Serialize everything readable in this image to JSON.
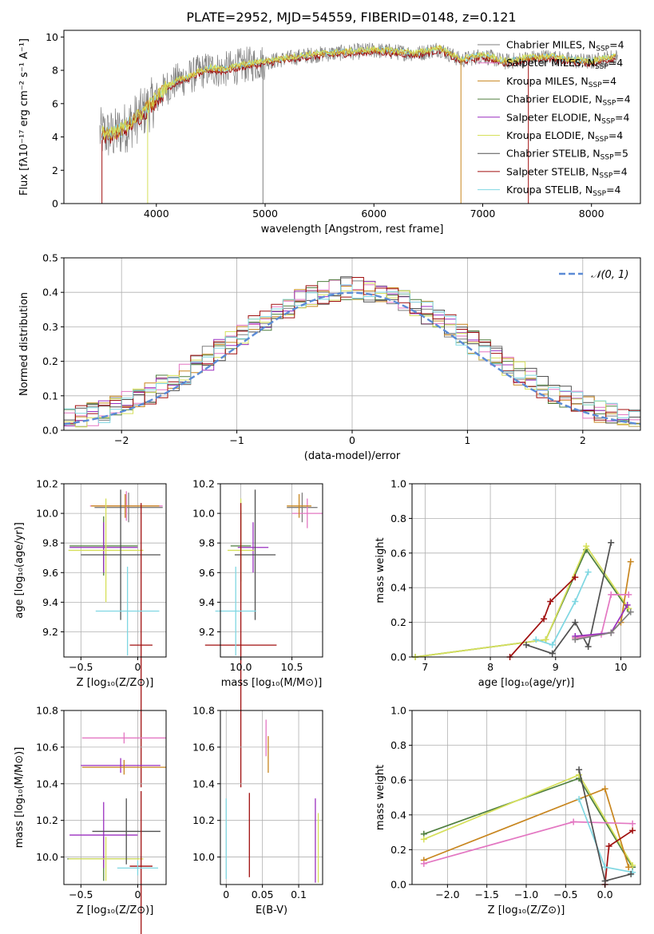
{
  "figure": {
    "title": "PLATE=2952, MJD=54559, FIBERID=0148, z=0.121",
    "colors": {
      "gray": "#7f7f7f",
      "pink": "#e377c2",
      "olive_orange": "#c8861f",
      "olive_green": "#4f7f3f",
      "purple": "#9a2fbf",
      "yellow_green": "#d6e05a",
      "dark_gray": "#505050",
      "dark_red": "#a00f0f",
      "cyan": "#7fd7e2",
      "blue_dash": "#5b8bd6",
      "grid": "#b0b0b0"
    }
  },
  "chart_data": [
    {
      "id": "spectrum",
      "type": "line",
      "xlabel": "wavelength [Angstrom, rest frame]",
      "ylabel": "Flux [fλ10⁻¹⁷ erg cm⁻² s⁻¹ A⁻¹]",
      "xlim": [
        3150,
        8450
      ],
      "ylim": [
        0,
        10.4
      ],
      "xticks": [
        4000,
        5000,
        6000,
        7000,
        8000
      ],
      "yticks": [
        0,
        2,
        4,
        6,
        8,
        10
      ],
      "grid": false,
      "legend_position": "right",
      "series": [
        {
          "name": "Chabrier MILES, N_SSP=4",
          "color": "gray"
        },
        {
          "name": "Salpeter MILES, N_SSP=4",
          "color": "pink"
        },
        {
          "name": "Kroupa MILES, N_SSP=4",
          "color": "olive_orange"
        },
        {
          "name": "Chabrier ELODIE, N_SSP=4",
          "color": "olive_green"
        },
        {
          "name": "Salpeter ELODIE, N_SSP=4",
          "color": "purple"
        },
        {
          "name": "Kroupa ELODIE, N_SSP=4",
          "color": "yellow_green"
        },
        {
          "name": "Chabrier STELIB, N_SSP=5",
          "color": "dark_gray"
        },
        {
          "name": "Salpeter STELIB, N_SSP=4",
          "color": "dark_red"
        },
        {
          "name": "Kroupa STELIB, N_SSP=4",
          "color": "cyan"
        }
      ],
      "model_continuum": {
        "x": [
          3500,
          3600,
          3700,
          3800,
          3900,
          4000,
          4100,
          4200,
          4300,
          4400,
          4500,
          4600,
          4800,
          5000,
          5200,
          5400,
          5600,
          5800,
          6000,
          6200,
          6400,
          6600,
          6800,
          7000,
          7200,
          7400,
          7600,
          7800,
          8000,
          8200
        ],
        "y": [
          4.2,
          4.1,
          4.5,
          5.0,
          5.6,
          6.3,
          7.0,
          7.4,
          7.6,
          7.9,
          8.1,
          8.0,
          8.3,
          8.5,
          8.7,
          8.9,
          9.0,
          9.1,
          9.2,
          9.1,
          9.0,
          9.3,
          8.6,
          8.9,
          8.5,
          8.7,
          8.8,
          8.6,
          8.5,
          8.8
        ]
      },
      "data_dropouts": [
        {
          "x": 3500,
          "y_bottom": 0
        },
        {
          "x": 3920,
          "y_bottom": 0
        },
        {
          "x": 4980,
          "y_bottom": 0
        },
        {
          "x": 6800,
          "y_bottom": 0
        },
        {
          "x": 7420,
          "y_bottom": 0
        }
      ]
    },
    {
      "id": "residuals",
      "type": "line",
      "xlabel": "(data-model)/error",
      "ylabel": "Normed distribution",
      "xlim": [
        -2.5,
        2.5
      ],
      "ylim": [
        0,
        0.5
      ],
      "xticks": [
        -2,
        -1,
        0,
        1,
        2
      ],
      "yticks": [
        0.0,
        0.1,
        0.2,
        0.3,
        0.4,
        0.5
      ],
      "grid": true,
      "legend_position": "top-right",
      "legend": "𝒩(0, 1)",
      "reference": {
        "mean": 0,
        "sigma": 1
      }
    },
    {
      "id": "age_vs_Z",
      "type": "scatter",
      "xlabel": "Z [log₁₀(Z/Z⊙)]",
      "ylabel": "age  [log₁₀(age/yr)]",
      "xlim": [
        -0.65,
        0.25
      ],
      "ylim": [
        9.03,
        10.2
      ],
      "xticks": [
        -0.5,
        0.0
      ],
      "yticks": [
        9.2,
        9.4,
        9.6,
        9.8,
        10.0,
        10.2
      ],
      "grid": true,
      "points": [
        {
          "x": -0.08,
          "y": 10.04,
          "xerr": 0.3,
          "yerr": 0.1,
          "color": "gray"
        },
        {
          "x": -0.1,
          "y": 10.05,
          "xerr": 0.32,
          "yerr": 0.1,
          "color": "pink"
        },
        {
          "x": -0.11,
          "y": 10.05,
          "xerr": 0.3,
          "yerr": 0.08,
          "color": "olive_orange"
        },
        {
          "x": -0.3,
          "y": 9.78,
          "xerr": 0.3,
          "yerr": 0.2,
          "color": "olive_green"
        },
        {
          "x": -0.3,
          "y": 9.77,
          "xerr": 0.3,
          "yerr": 0.17,
          "color": "purple"
        },
        {
          "x": -0.28,
          "y": 9.75,
          "xerr": 0.33,
          "yerr": 0.35,
          "color": "yellow_green"
        },
        {
          "x": -0.15,
          "y": 9.72,
          "xerr": 0.35,
          "yerr": 0.44,
          "color": "dark_gray"
        },
        {
          "x": 0.03,
          "y": 9.11,
          "xerr": 0.1,
          "yerr": 0.96,
          "color": "dark_red"
        },
        {
          "x": -0.09,
          "y": 9.34,
          "xerr": 0.28,
          "yerr": 0.3,
          "color": "cyan"
        }
      ]
    },
    {
      "id": "age_vs_mass",
      "type": "scatter",
      "xlabel": "mass [log₁₀(M/M⊙)]",
      "ylabel": "",
      "xlim": [
        9.8,
        10.8
      ],
      "ylim": [
        9.03,
        10.2
      ],
      "xticks": [
        10.0,
        10.5
      ],
      "yticks": [
        9.2,
        9.4,
        9.6,
        9.8,
        10.0,
        10.2
      ],
      "grid": true,
      "points": [
        {
          "x": 10.6,
          "y": 10.04,
          "xerr": 0.15,
          "yerr": 0.1,
          "color": "gray"
        },
        {
          "x": 10.65,
          "y": 10.0,
          "xerr": 0.15,
          "yerr": 0.1,
          "color": "pink"
        },
        {
          "x": 10.57,
          "y": 10.05,
          "xerr": 0.12,
          "yerr": 0.08,
          "color": "olive_orange"
        },
        {
          "x": 10.0,
          "y": 9.78,
          "xerr": 0.1,
          "yerr": 0.24,
          "color": "olive_green"
        },
        {
          "x": 10.12,
          "y": 9.77,
          "xerr": 0.15,
          "yerr": 0.17,
          "color": "purple"
        },
        {
          "x": 10.0,
          "y": 9.75,
          "xerr": 0.13,
          "yerr": 0.35,
          "color": "yellow_green"
        },
        {
          "x": 10.14,
          "y": 9.72,
          "xerr": 0.2,
          "yerr": 0.44,
          "color": "dark_gray"
        },
        {
          "x": 10.0,
          "y": 9.11,
          "xerr": 0.35,
          "yerr": 0.96,
          "color": "dark_red"
        },
        {
          "x": 9.95,
          "y": 9.34,
          "xerr": 0.2,
          "yerr": 0.3,
          "color": "cyan"
        }
      ]
    },
    {
      "id": "mass_weight_vs_age",
      "type": "line",
      "xlabel": "age  [log₁₀(age/yr)]",
      "ylabel": "mass weight",
      "xlim": [
        6.8,
        10.3
      ],
      "ylim": [
        0,
        1
      ],
      "xticks": [
        7,
        8,
        9,
        10
      ],
      "yticks": [
        0.0,
        0.2,
        0.4,
        0.6,
        0.8,
        1.0
      ],
      "grid": true,
      "series": [
        {
          "color": "olive_green",
          "x": [
            6.85,
            8.85,
            9.47,
            10.1
          ],
          "y": [
            0.0,
            0.1,
            0.62,
            0.28
          ]
        },
        {
          "color": "yellow_green",
          "x": [
            6.85,
            8.85,
            9.47,
            10.12
          ],
          "y": [
            0.0,
            0.1,
            0.64,
            0.28
          ]
        },
        {
          "color": "dark_red",
          "x": [
            8.3,
            8.82,
            8.92,
            9.3
          ],
          "y": [
            0.0,
            0.22,
            0.32,
            0.46
          ]
        },
        {
          "color": "cyan",
          "x": [
            8.7,
            8.95,
            9.3,
            9.5
          ],
          "y": [
            0.1,
            0.07,
            0.32,
            0.49
          ]
        },
        {
          "color": "dark_gray",
          "x": [
            8.55,
            8.95,
            9.3,
            9.5,
            9.85
          ],
          "y": [
            0.07,
            0.02,
            0.2,
            0.06,
            0.66
          ]
        },
        {
          "color": "olive_orange",
          "x": [
            9.3,
            9.85,
            10.0,
            10.15
          ],
          "y": [
            0.11,
            0.14,
            0.2,
            0.55
          ]
        },
        {
          "color": "pink",
          "x": [
            9.3,
            9.7,
            9.85,
            10.12
          ],
          "y": [
            0.11,
            0.13,
            0.36,
            0.36
          ]
        },
        {
          "color": "purple",
          "x": [
            9.3,
            9.85,
            10.1
          ],
          "y": [
            0.12,
            0.14,
            0.3
          ]
        },
        {
          "color": "gray",
          "x": [
            9.3,
            9.85,
            10.15
          ],
          "y": [
            0.1,
            0.14,
            0.26
          ]
        }
      ]
    },
    {
      "id": "mass_vs_Z",
      "type": "scatter",
      "xlabel": "Z [log₁₀(Z/Z⊙)]",
      "ylabel": "mass [log₁₀(M/M⊙)]",
      "xlim": [
        -0.65,
        0.25
      ],
      "ylim": [
        9.85,
        10.8
      ],
      "xticks": [
        -0.5,
        0.0
      ],
      "yticks": [
        10.0,
        10.2,
        10.4,
        10.6,
        10.8
      ],
      "grid": true,
      "points": [
        {
          "x": -0.15,
          "y": 10.5,
          "xerr": 0.35,
          "yerr": 0.04,
          "color": "purple"
        },
        {
          "x": -0.12,
          "y": 10.65,
          "xerr": 0.37,
          "yerr": 0.03,
          "color": "pink"
        },
        {
          "x": -0.12,
          "y": 10.49,
          "xerr": 0.37,
          "yerr": 0.04,
          "color": "olive_orange"
        },
        {
          "x": -0.3,
          "y": 9.99,
          "xerr": 0.32,
          "yerr": 0.12,
          "color": "olive_green"
        },
        {
          "x": -0.3,
          "y": 10.12,
          "xerr": 0.3,
          "yerr": 0.18,
          "color": "purple"
        },
        {
          "x": -0.28,
          "y": 9.99,
          "xerr": 0.33,
          "yerr": 0.12,
          "color": "yellow_green"
        },
        {
          "x": -0.1,
          "y": 10.14,
          "xerr": 0.3,
          "yerr": 0.18,
          "color": "dark_gray"
        },
        {
          "x": 0.03,
          "y": 9.95,
          "xerr": 0.1,
          "yerr": 0.41,
          "color": "dark_red"
        },
        {
          "x": 0.0,
          "y": 9.94,
          "xerr": 0.18,
          "yerr": 0.04,
          "color": "cyan"
        }
      ]
    },
    {
      "id": "mass_vs_EBV",
      "type": "scatter",
      "xlabel": "E(B-V)",
      "ylabel": "",
      "xlim": [
        -0.008,
        0.133
      ],
      "ylim": [
        9.85,
        10.8
      ],
      "xticks": [
        0.0,
        0.05,
        0.1
      ],
      "yticks": [
        10.0,
        10.2,
        10.4,
        10.6,
        10.8
      ],
      "grid": true,
      "points": [
        {
          "x": 0.055,
          "y": 10.65,
          "yerr": 0.1,
          "color": "pink"
        },
        {
          "x": 0.058,
          "y": 10.56,
          "yerr": 0.1,
          "color": "olive_orange"
        },
        {
          "x": 0.0,
          "y": 10.1,
          "yerr": 0.22,
          "color": "cyan"
        },
        {
          "x": 0.032,
          "y": 10.12,
          "yerr": 0.23,
          "color": "dark_red"
        },
        {
          "x": 0.123,
          "y": 10.09,
          "yerr": 0.23,
          "color": "purple"
        },
        {
          "x": 0.127,
          "y": 10.05,
          "yerr": 0.19,
          "color": "yellow_green"
        }
      ]
    },
    {
      "id": "mass_weight_vs_Z",
      "type": "line",
      "xlabel": "Z [log₁₀(Z/Z⊙)]",
      "ylabel": "mass weight",
      "xlim": [
        -2.45,
        0.45
      ],
      "ylim": [
        0,
        1
      ],
      "xticks": [
        -2.0,
        -1.5,
        -1.0,
        -0.5,
        0.0
      ],
      "yticks": [
        0.0,
        0.2,
        0.4,
        0.6,
        0.8,
        1.0
      ],
      "grid": true,
      "series": [
        {
          "color": "olive_green",
          "x": [
            -2.3,
            -0.33,
            0.35
          ],
          "y": [
            0.29,
            0.61,
            0.1
          ]
        },
        {
          "color": "yellow_green",
          "x": [
            -2.3,
            -0.33,
            0.35
          ],
          "y": [
            0.26,
            0.63,
            0.11
          ]
        },
        {
          "color": "olive_orange",
          "x": [
            -2.3,
            0.0,
            0.3
          ],
          "y": [
            0.14,
            0.55,
            0.1
          ]
        },
        {
          "color": "pink",
          "x": [
            -2.3,
            -0.4,
            0.35
          ],
          "y": [
            0.12,
            0.36,
            0.35
          ]
        },
        {
          "color": "dark_red",
          "x": [
            0.0,
            0.05,
            0.35
          ],
          "y": [
            0.0,
            0.22,
            0.31
          ]
        },
        {
          "color": "cyan",
          "x": [
            -0.33,
            0.0,
            0.35
          ],
          "y": [
            0.49,
            0.1,
            0.07
          ]
        },
        {
          "color": "dark_gray",
          "x": [
            -0.33,
            0.0,
            0.33
          ],
          "y": [
            0.66,
            0.02,
            0.06
          ]
        }
      ]
    }
  ]
}
